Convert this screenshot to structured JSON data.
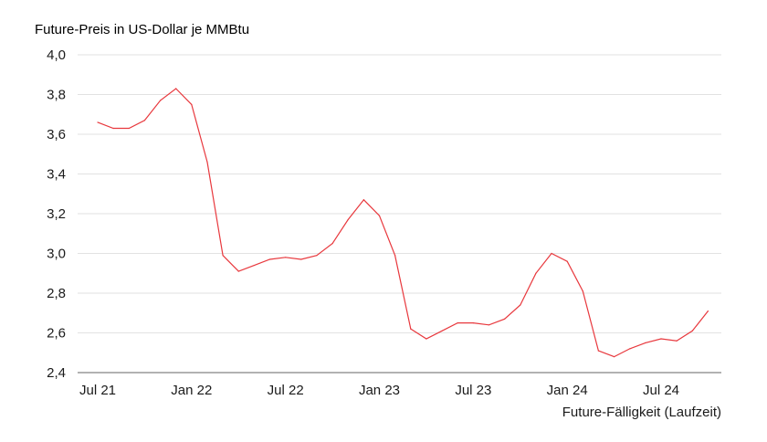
{
  "chart_data": {
    "type": "line",
    "title": "",
    "ylabel": "Future-Preis in US-Dollar je MMBtu",
    "xlabel": "Future-Fälligkeit (Laufzeit)",
    "ylim": [
      2.4,
      4.0
    ],
    "yticks": [
      "4,0",
      "3,8",
      "3,6",
      "3,4",
      "3,2",
      "3,0",
      "2,8",
      "2,6",
      "2,4"
    ],
    "ytick_values": [
      4.0,
      3.8,
      3.6,
      3.4,
      3.2,
      3.0,
      2.8,
      2.6,
      2.4
    ],
    "xticks": [
      {
        "label": "Jul 21",
        "month": "2021-07"
      },
      {
        "label": "Jan 22",
        "month": "2022-01"
      },
      {
        "label": "Jul 22",
        "month": "2022-07"
      },
      {
        "label": "Jan 23",
        "month": "2023-01"
      },
      {
        "label": "Jul 23",
        "month": "2023-07"
      },
      {
        "label": "Jan 24",
        "month": "2024-01"
      },
      {
        "label": "Jul 24",
        "month": "2024-07"
      }
    ],
    "grid": true,
    "line_color": "#e8383d",
    "series": [
      {
        "x": [
          "2021-07",
          "2021-08",
          "2021-09",
          "2021-10",
          "2021-11",
          "2021-12",
          "2022-01",
          "2022-02",
          "2022-03",
          "2022-04",
          "2022-05",
          "2022-06",
          "2022-07",
          "2022-08",
          "2022-09",
          "2022-10",
          "2022-11",
          "2022-12",
          "2023-01",
          "2023-02",
          "2023-03",
          "2023-04",
          "2023-05",
          "2023-06",
          "2023-07",
          "2023-08",
          "2023-09",
          "2023-10",
          "2023-11",
          "2023-12",
          "2024-01",
          "2024-02",
          "2024-03",
          "2024-04",
          "2024-05",
          "2024-06",
          "2024-07",
          "2024-08",
          "2024-09",
          "2024-10"
        ],
        "values": [
          3.66,
          3.63,
          3.63,
          3.67,
          3.77,
          3.83,
          3.75,
          3.46,
          2.99,
          2.91,
          2.94,
          2.97,
          2.98,
          2.97,
          2.99,
          3.05,
          3.17,
          3.27,
          3.19,
          2.99,
          2.62,
          2.57,
          2.61,
          2.65,
          2.65,
          2.64,
          2.67,
          2.74,
          2.9,
          3.0,
          2.96,
          2.81,
          2.51,
          2.48,
          2.52,
          2.55,
          2.57,
          2.56,
          2.61,
          2.71
        ]
      }
    ]
  }
}
